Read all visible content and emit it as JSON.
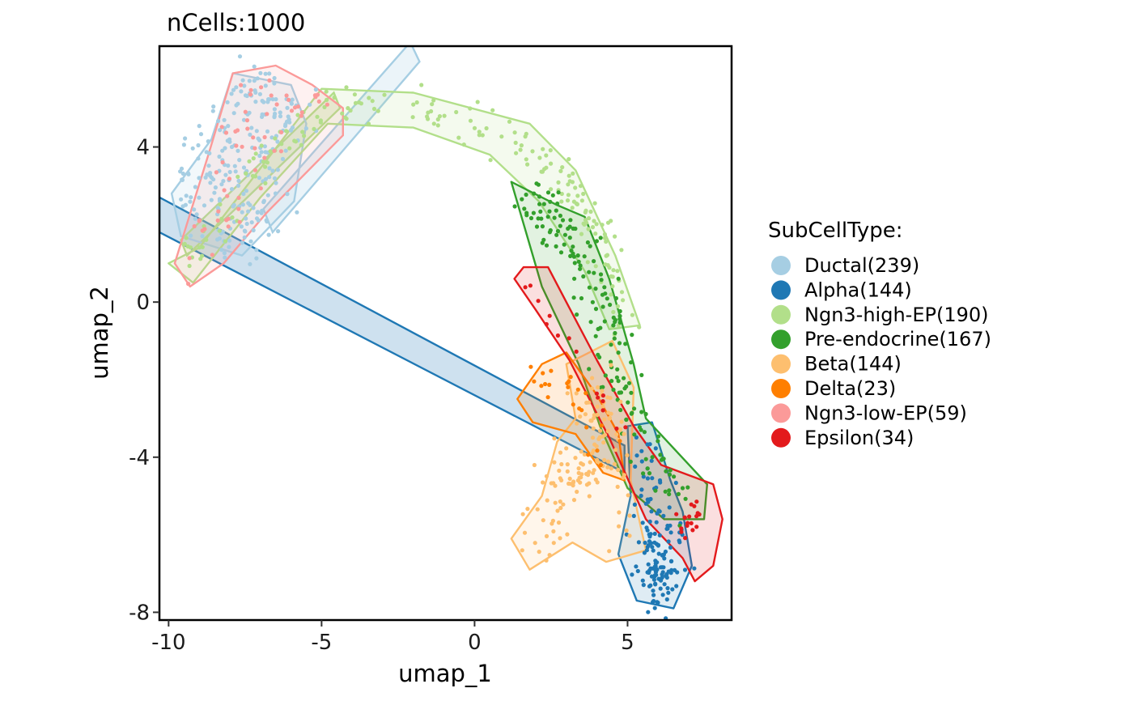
{
  "chart_data": {
    "type": "scatter",
    "title": "nCells:1000",
    "xlabel": "umap_1",
    "ylabel": "umap_2",
    "xlim": [
      -10.3,
      8.4
    ],
    "ylim": [
      -8.2,
      6.6
    ],
    "x_ticks": [
      -10,
      -5,
      0,
      5
    ],
    "x_tick_labels": [
      "-10",
      "-5",
      "0",
      "5"
    ],
    "y_ticks": [
      -8,
      -4,
      0,
      4
    ],
    "y_tick_labels": [
      "-8",
      "-4",
      "0",
      "4"
    ],
    "grid": false,
    "legend": {
      "title": "SubCellType:",
      "placement": "right",
      "entries": [
        {
          "label": "Ductal(239)",
          "color": "#a6cee3"
        },
        {
          "label": "Alpha(144)",
          "color": "#1f78b4"
        },
        {
          "label": "Ngn3-high-EP(190)",
          "color": "#b2df8a"
        },
        {
          "label": "Pre-endocrine(167)",
          "color": "#33a02c"
        },
        {
          "label": "Beta(144)",
          "color": "#fdbf6f"
        },
        {
          "label": "Delta(23)",
          "color": "#ff7f00"
        },
        {
          "label": "Ngn3-low-EP(59)",
          "color": "#fb9a99"
        },
        {
          "label": "Epsilon(34)",
          "color": "#e31a1c"
        }
      ]
    },
    "series": [
      {
        "color": "#a6cee3",
        "count": 239,
        "spine": [
          [
            -9.3,
            2.4
          ],
          [
            -8.6,
            3.5
          ],
          [
            -7.8,
            4.8
          ],
          [
            -7.0,
            5.5
          ],
          [
            -6.0,
            5.0
          ],
          [
            -7.2,
            3.2
          ],
          [
            -8.3,
            1.8
          ],
          [
            -6.6,
            2.6
          ]
        ],
        "spread": 0.45
      },
      {
        "color": "#1f78b4",
        "count": 144,
        "spine": [
          [
            5.5,
            -3.8
          ],
          [
            5.8,
            -5.2
          ],
          [
            6.0,
            -6.3
          ],
          [
            6.3,
            -7.3
          ],
          [
            5.7,
            -7.2
          ],
          [
            6.6,
            -5.8
          ]
        ],
        "spread": 0.35
      },
      {
        "color": "#b2df8a",
        "count": 190,
        "spine": [
          [
            -9.5,
            1.0
          ],
          [
            -7.0,
            3.5
          ],
          [
            -4.8,
            5.2
          ],
          [
            -2.0,
            5.0
          ],
          [
            0.5,
            4.5
          ],
          [
            2.5,
            3.5
          ],
          [
            3.5,
            2.6
          ],
          [
            4.2,
            1.2
          ],
          [
            4.8,
            -0.5
          ]
        ],
        "spread": 0.28
      },
      {
        "color": "#33a02c",
        "count": 167,
        "spine": [
          [
            1.8,
            2.8
          ],
          [
            2.5,
            2.0
          ],
          [
            3.5,
            1.5
          ],
          [
            4.0,
            0.2
          ],
          [
            4.5,
            -1.2
          ],
          [
            4.9,
            -2.5
          ],
          [
            5.5,
            -3.8
          ],
          [
            6.5,
            -5.0
          ]
        ],
        "spread": 0.35
      },
      {
        "color": "#fdbf6f",
        "count": 144,
        "spine": [
          [
            1.8,
            -6.2
          ],
          [
            3.0,
            -5.0
          ],
          [
            3.5,
            -4.2
          ],
          [
            4.3,
            -3.3
          ],
          [
            4.0,
            -2.2
          ],
          [
            5.0,
            -6.0
          ]
        ],
        "spread": 0.4
      },
      {
        "color": "#ff7f00",
        "count": 23,
        "spine": [
          [
            2.0,
            -2.3
          ],
          [
            2.8,
            -1.8
          ],
          [
            3.7,
            -3.0
          ],
          [
            4.6,
            -4.0
          ]
        ],
        "spread": 0.3
      },
      {
        "color": "#fb9a99",
        "count": 59,
        "spine": [
          [
            -9.0,
            1.3
          ],
          [
            -8.0,
            4.0
          ],
          [
            -6.8,
            5.5
          ],
          [
            -5.0,
            5.1
          ],
          [
            -8.3,
            2.0
          ]
        ],
        "spread": 0.35
      },
      {
        "color": "#e31a1c",
        "count": 34,
        "spine": [
          [
            1.7,
            0.5
          ],
          [
            1.9,
            0.4
          ],
          [
            6.9,
            -6.0
          ],
          [
            7.2,
            -5.1
          ],
          [
            7.0,
            -6.2
          ]
        ],
        "spread": 0.12
      }
    ],
    "hulls": [
      {
        "color": "#a6cee3",
        "points": [
          [
            -9.9,
            2.8
          ],
          [
            -8.6,
            4.2
          ],
          [
            -7.9,
            5.9
          ],
          [
            -6.0,
            5.6
          ],
          [
            -5.5,
            4.6
          ],
          [
            -5.9,
            2.6
          ],
          [
            -7.6,
            1.2
          ],
          [
            -9.6,
            1.7
          ]
        ]
      },
      {
        "color": "#1f78b4",
        "points": [
          [
            5.0,
            -3.2
          ],
          [
            5.8,
            -3.1
          ],
          [
            6.4,
            -4.6
          ],
          [
            6.8,
            -5.4
          ],
          [
            7.1,
            -6.8
          ],
          [
            6.5,
            -7.9
          ],
          [
            5.3,
            -7.7
          ],
          [
            4.7,
            -6.5
          ],
          [
            5.1,
            -5.0
          ]
        ]
      },
      {
        "color": "#b2df8a",
        "points": [
          [
            -10.0,
            1.0
          ],
          [
            -9.0,
            1.4
          ],
          [
            -5.0,
            5.5
          ],
          [
            -2.0,
            5.4
          ],
          [
            1.8,
            4.6
          ],
          [
            3.3,
            3.4
          ],
          [
            4.6,
            1.2
          ],
          [
            5.4,
            -0.6
          ],
          [
            4.4,
            -0.7
          ],
          [
            3.6,
            0.8
          ],
          [
            2.1,
            2.6
          ],
          [
            0.5,
            3.8
          ],
          [
            -2.0,
            4.5
          ],
          [
            -4.8,
            4.6
          ],
          [
            -7.0,
            2.7
          ],
          [
            -9.2,
            0.5
          ]
        ]
      },
      {
        "color": "#33a02c",
        "points": [
          [
            1.2,
            3.1
          ],
          [
            2.7,
            2.5
          ],
          [
            3.6,
            2.2
          ],
          [
            4.4,
            0.6
          ],
          [
            5.2,
            -1.6
          ],
          [
            5.6,
            -3.0
          ],
          [
            7.6,
            -4.7
          ],
          [
            7.5,
            -5.6
          ],
          [
            6.2,
            -5.6
          ],
          [
            5.0,
            -4.8
          ],
          [
            4.1,
            -3.2
          ],
          [
            3.4,
            -1.6
          ],
          [
            2.2,
            0.4
          ]
        ]
      },
      {
        "color": "#fdbf6f",
        "points": [
          [
            1.2,
            -6.1
          ],
          [
            2.2,
            -5.0
          ],
          [
            2.7,
            -3.6
          ],
          [
            3.3,
            -3.0
          ],
          [
            3.0,
            -1.6
          ],
          [
            4.5,
            -1.0
          ],
          [
            5.2,
            -2.2
          ],
          [
            5.1,
            -4.6
          ],
          [
            5.6,
            -6.4
          ],
          [
            4.3,
            -6.7
          ],
          [
            3.2,
            -6.2
          ],
          [
            1.8,
            -6.9
          ]
        ]
      },
      {
        "color": "#ff7f00",
        "points": [
          [
            1.4,
            -2.5
          ],
          [
            2.2,
            -1.6
          ],
          [
            3.0,
            -1.3
          ],
          [
            4.0,
            -2.4
          ],
          [
            4.7,
            -3.4
          ],
          [
            4.9,
            -4.6
          ],
          [
            4.2,
            -4.4
          ],
          [
            3.3,
            -3.4
          ],
          [
            1.9,
            -3.1
          ]
        ]
      },
      {
        "color": "#fb9a99",
        "points": [
          [
            -9.8,
            1.0
          ],
          [
            -8.7,
            3.8
          ],
          [
            -7.9,
            5.9
          ],
          [
            -6.5,
            6.1
          ],
          [
            -5.3,
            5.6
          ],
          [
            -4.3,
            5.0
          ],
          [
            -4.3,
            4.3
          ],
          [
            -6.8,
            2.3
          ],
          [
            -8.2,
            1.0
          ],
          [
            -9.3,
            0.4
          ]
        ]
      },
      {
        "color": "#e31a1c",
        "points": [
          [
            1.3,
            0.6
          ],
          [
            1.6,
            0.9
          ],
          [
            2.4,
            0.9
          ],
          [
            3.0,
            0.0
          ],
          [
            4.0,
            -1.5
          ],
          [
            5.2,
            -3.2
          ],
          [
            6.1,
            -4.2
          ],
          [
            7.8,
            -4.7
          ],
          [
            8.1,
            -5.6
          ],
          [
            7.8,
            -6.8
          ],
          [
            7.2,
            -7.2
          ],
          [
            6.8,
            -6.6
          ],
          [
            5.6,
            -5.6
          ],
          [
            4.4,
            -3.5
          ],
          [
            3.1,
            -1.5
          ],
          [
            2.0,
            -0.2
          ]
        ]
      }
    ],
    "trajectory_bands": [
      {
        "color": "#a6cee3",
        "points": [
          [
            -6.6,
            1.8
          ],
          [
            -1.8,
            6.2
          ],
          [
            -2.1,
            6.7
          ],
          [
            -6.9,
            2.4
          ]
        ]
      },
      {
        "color": "#1f78b4",
        "points": [
          [
            -10.3,
            1.8
          ],
          [
            4.9,
            -4.4
          ],
          [
            4.9,
            -3.7
          ],
          [
            -10.3,
            2.7
          ]
        ]
      },
      {
        "color": "#b2df8a",
        "points": [
          [
            -9.4,
            1.2
          ],
          [
            -4.4,
            5.0
          ],
          [
            -4.6,
            5.4
          ],
          [
            -9.6,
            1.6
          ]
        ]
      }
    ]
  }
}
